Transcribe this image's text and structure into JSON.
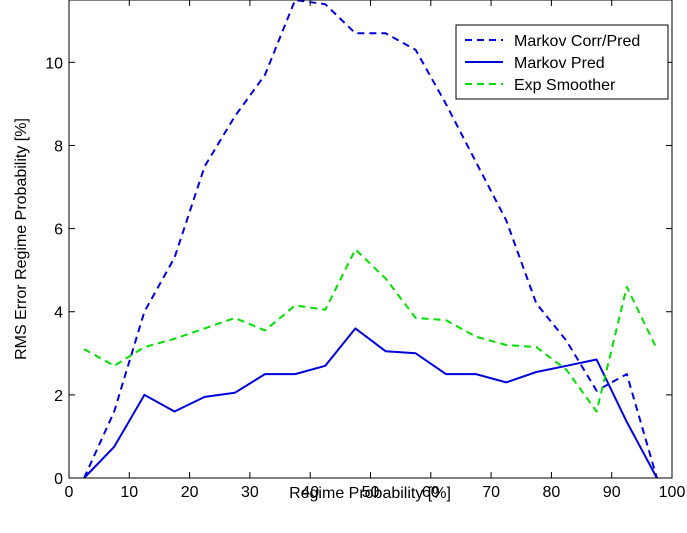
{
  "chart_data": {
    "type": "line",
    "title": "",
    "xlabel": "Regime Probability [%]",
    "ylabel": "RMS Error Regime Probability [%]",
    "xlim": [
      0,
      100
    ],
    "ylim": [
      0,
      11.5
    ],
    "x_ticks": [
      0,
      10,
      20,
      30,
      40,
      50,
      60,
      70,
      80,
      90,
      100
    ],
    "y_ticks": [
      0,
      2,
      4,
      6,
      8,
      10
    ],
    "grid": false,
    "legend_position": "top-right",
    "x": [
      2.5,
      7.5,
      12.5,
      17.5,
      22.5,
      27.5,
      32.5,
      37.5,
      42.5,
      47.5,
      52.5,
      57.5,
      62.5,
      67.5,
      72.5,
      77.5,
      82.5,
      87.5,
      92.5,
      97.5
    ],
    "series": [
      {
        "name": "Markov Corr/Pred",
        "color": "#0000dd",
        "style": "dashed",
        "values": [
          0.0,
          1.6,
          4.0,
          5.3,
          7.5,
          8.7,
          9.7,
          11.5,
          11.4,
          10.7,
          10.7,
          10.3,
          9.0,
          7.6,
          6.2,
          4.2,
          3.3,
          2.1,
          2.5,
          0.0
        ]
      },
      {
        "name": "Markov Pred",
        "color": "#0000dd",
        "style": "solid",
        "values": [
          0.0,
          0.75,
          2.0,
          1.6,
          1.95,
          2.05,
          2.5,
          2.5,
          2.7,
          3.6,
          3.05,
          3.0,
          2.5,
          2.5,
          2.3,
          2.55,
          2.7,
          2.85,
          1.35,
          0.0
        ]
      },
      {
        "name": "Exp Smoother",
        "color": "#00dd00",
        "style": "dashed",
        "values": [
          3.1,
          2.7,
          3.15,
          3.35,
          3.6,
          3.85,
          3.55,
          4.15,
          4.05,
          5.5,
          4.8,
          3.85,
          3.8,
          3.4,
          3.2,
          3.15,
          2.6,
          1.6,
          4.6,
          3.1
        ]
      }
    ]
  }
}
